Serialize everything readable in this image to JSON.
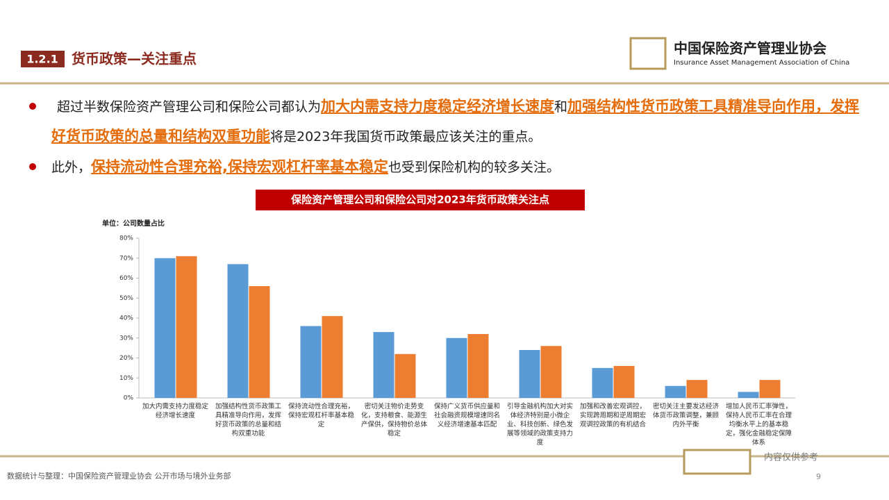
{
  "header": {
    "section": "1.2.1",
    "title": "货币政策—关注重点",
    "logo_cn": "中国保险资产管理业协会",
    "logo_en": "Insurance Asset Management Association of China"
  },
  "bullets": [
    [
      {
        "text": "超过半数保险资产管理公司和保险公司都认为"
      },
      {
        "text": "加大内需支持力度稳定经济增长速度",
        "highlight": true
      },
      {
        "text": "和"
      },
      {
        "text": "加强结构性货币政策工具精准导向作用，发挥好货币政策的总量和结构双重功能",
        "highlight": true
      },
      {
        "text": "将是2023年我国货币政策最应该关注的重点。"
      }
    ],
    [
      {
        "text": "此外，"
      },
      {
        "text": "保持流动性合理充裕,保持宏观杠杆率基本稳定",
        "highlight": true
      },
      {
        "text": "也受到保险机构的较多关注。"
      }
    ]
  ],
  "chart_data": {
    "type": "bar",
    "title": "保险资产管理公司和保险公司对2023年货币政策关注点",
    "unit_label": "单位：公司数量占比",
    "categories": [
      "加大内需支持力度稳定经济增长速度",
      "加强结构性货币政策工具精准导向作用，发挥好货币政策的总量和结构双重功能",
      "保持流动性合理充裕，保持宏观杠杆率基本稳定",
      "密切关注物价走势变化，支持粮食、能源生产保供，保持物价总体稳定",
      "保持广义货币供应量和社会融资规模增速同名义经济增速基本匹配",
      "引导金融机构加大对实体经济特别是小微企业、科技创新、绿色发展等领域的政策支持力度",
      "加强和改善宏观调控，实现跨周期和逆周期宏观调控政策的有机结合",
      "密切关注主要发达经济体货币政策调整，兼顾内外平衡",
      "增加人民币汇率弹性，保持人民币汇率在合理均衡水平上的基本稳定，强化金融稳定保障体系"
    ],
    "series": [
      {
        "color": "#5b9bd5",
        "values": [
          70,
          67,
          36,
          33,
          30,
          24,
          15,
          6,
          3
        ]
      },
      {
        "color": "#ed7d31",
        "values": [
          71,
          56,
          41,
          22,
          32,
          26,
          16,
          9,
          9
        ]
      }
    ],
    "ylim": [
      0,
      80
    ],
    "yticks": [
      {
        "value": 0,
        "label": "0%"
      },
      {
        "value": 10,
        "label": "10%"
      },
      {
        "value": 20,
        "label": "20%"
      },
      {
        "value": 30,
        "label": "30%"
      },
      {
        "value": 40,
        "label": "40%"
      },
      {
        "value": 50,
        "label": "50%"
      },
      {
        "value": 60,
        "label": "60%"
      },
      {
        "value": 70,
        "label": "70%"
      },
      {
        "value": 80,
        "label": "80%"
      }
    ]
  },
  "footer": {
    "source": "数据统计与整理：中国保险资产管理业协会 公开市场与境外业务部",
    "note": "内容仅供参考",
    "page": "9"
  }
}
